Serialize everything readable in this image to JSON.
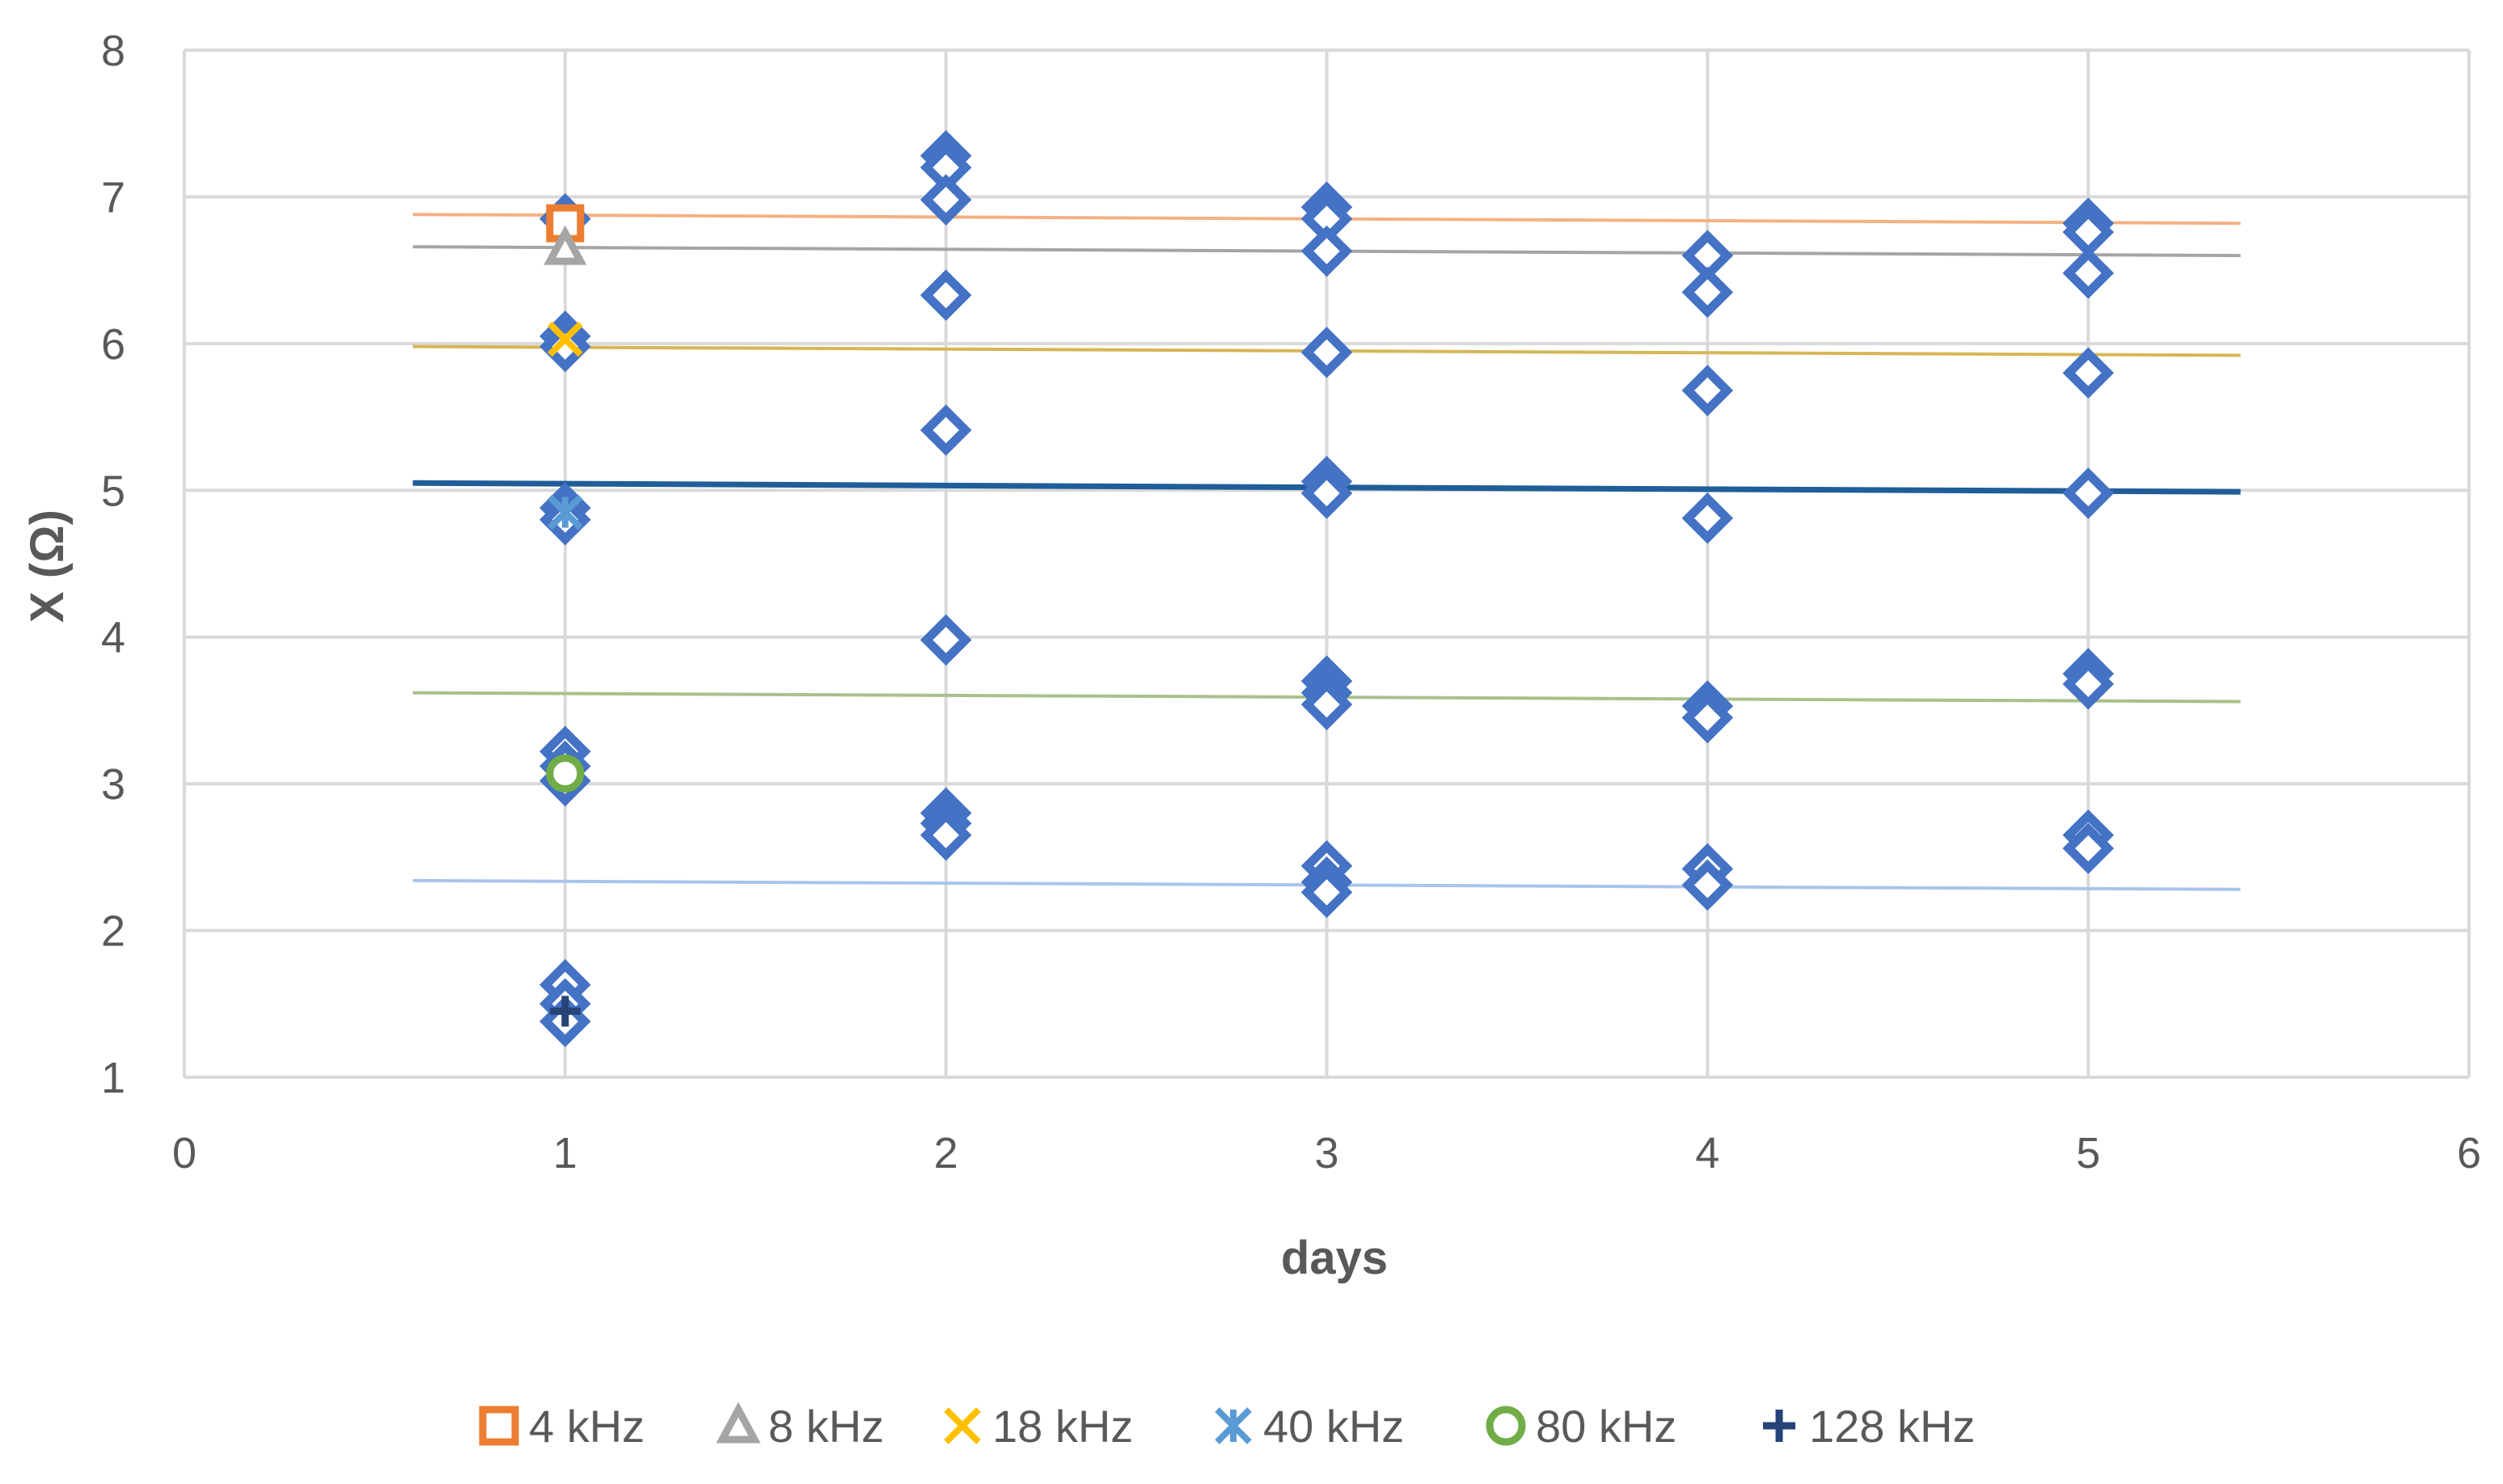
{
  "chart_data": {
    "type": "scatter",
    "title": "",
    "xlabel": "days",
    "ylabel": "X (Ω)",
    "xlim": [
      0,
      6
    ],
    "ylim": [
      1,
      8
    ],
    "xticks": [
      0,
      1,
      2,
      3,
      4,
      5,
      6
    ],
    "yticks": [
      1,
      2,
      3,
      4,
      5,
      6,
      7,
      8
    ],
    "grid": true,
    "legend_position": "bottom",
    "colors": {
      "diamond": "#4472C4",
      "grid": "#D9D9D9",
      "text": "#595959"
    },
    "diamond_points": [
      {
        "x": 1,
        "y": 6.85
      },
      {
        "x": 1,
        "y": 6.05
      },
      {
        "x": 1,
        "y": 5.98
      },
      {
        "x": 1,
        "y": 4.88
      },
      {
        "x": 1,
        "y": 4.8
      },
      {
        "x": 1,
        "y": 3.22
      },
      {
        "x": 1,
        "y": 3.12
      },
      {
        "x": 1,
        "y": 3.02
      },
      {
        "x": 1,
        "y": 1.63
      },
      {
        "x": 1,
        "y": 1.5
      },
      {
        "x": 1,
        "y": 1.38
      },
      {
        "x": 2,
        "y": 7.28
      },
      {
        "x": 2,
        "y": 7.2
      },
      {
        "x": 2,
        "y": 6.98
      },
      {
        "x": 2,
        "y": 6.33
      },
      {
        "x": 2,
        "y": 5.41
      },
      {
        "x": 2,
        "y": 3.98
      },
      {
        "x": 2,
        "y": 2.8
      },
      {
        "x": 2,
        "y": 2.73
      },
      {
        "x": 2,
        "y": 2.65
      },
      {
        "x": 3,
        "y": 6.93
      },
      {
        "x": 3,
        "y": 6.85
      },
      {
        "x": 3,
        "y": 6.63
      },
      {
        "x": 3,
        "y": 5.94
      },
      {
        "x": 3,
        "y": 5.06
      },
      {
        "x": 3,
        "y": 4.98
      },
      {
        "x": 3,
        "y": 3.7
      },
      {
        "x": 3,
        "y": 3.62
      },
      {
        "x": 3,
        "y": 3.54
      },
      {
        "x": 3,
        "y": 2.44
      },
      {
        "x": 3,
        "y": 2.33
      },
      {
        "x": 3,
        "y": 2.26
      },
      {
        "x": 4,
        "y": 6.6
      },
      {
        "x": 4,
        "y": 6.35
      },
      {
        "x": 4,
        "y": 5.68
      },
      {
        "x": 4,
        "y": 4.81
      },
      {
        "x": 4,
        "y": 3.53
      },
      {
        "x": 4,
        "y": 3.45
      },
      {
        "x": 4,
        "y": 2.42
      },
      {
        "x": 4,
        "y": 2.31
      },
      {
        "x": 5,
        "y": 6.82
      },
      {
        "x": 5,
        "y": 6.76
      },
      {
        "x": 5,
        "y": 6.48
      },
      {
        "x": 5,
        "y": 5.8
      },
      {
        "x": 5,
        "y": 4.98
      },
      {
        "x": 5,
        "y": 3.75
      },
      {
        "x": 5,
        "y": 3.68
      },
      {
        "x": 5,
        "y": 2.65
      },
      {
        "x": 5,
        "y": 2.56
      }
    ],
    "series": [
      {
        "name": "4 kHz",
        "marker": "square",
        "color": "#ED7D31",
        "x": [
          1
        ],
        "y": [
          6.82
        ],
        "trend": {
          "x": [
            0.6,
            5.4
          ],
          "y": [
            6.88,
            6.82
          ],
          "color": "#F4B183",
          "width": 4
        }
      },
      {
        "name": "8 kHz",
        "marker": "triangle",
        "color": "#A5A5A5",
        "x": [
          1
        ],
        "y": [
          6.65
        ],
        "trend": {
          "x": [
            0.6,
            5.4
          ],
          "y": [
            6.66,
            6.6
          ],
          "color": "#A5A5A5",
          "width": 4
        }
      },
      {
        "name": "18 kHz",
        "marker": "x",
        "color": "#FFC000",
        "x": [
          1
        ],
        "y": [
          6.03
        ],
        "trend": {
          "x": [
            0.6,
            5.4
          ],
          "y": [
            5.98,
            5.92
          ],
          "color": "#D6B656",
          "width": 4
        }
      },
      {
        "name": "40 kHz",
        "marker": "asterisk",
        "color": "#5B9BD5",
        "x": [
          1
        ],
        "y": [
          4.85
        ],
        "trend": {
          "x": [
            0.6,
            5.4
          ],
          "y": [
            5.05,
            4.99
          ],
          "color": "#1F5E99",
          "width": 7
        }
      },
      {
        "name": "80 kHz",
        "marker": "circle",
        "color": "#70AD47",
        "x": [
          1
        ],
        "y": [
          3.07
        ],
        "trend": {
          "x": [
            0.6,
            5.4
          ],
          "y": [
            3.62,
            3.56
          ],
          "color": "#A9C08C",
          "width": 4
        }
      },
      {
        "name": "128 kHz",
        "marker": "plus",
        "color": "#264478",
        "x": [
          1
        ],
        "y": [
          1.45
        ],
        "trend": {
          "x": [
            0.6,
            5.4
          ],
          "y": [
            2.34,
            2.28
          ],
          "color": "#A9C4EB",
          "width": 4
        }
      }
    ]
  }
}
